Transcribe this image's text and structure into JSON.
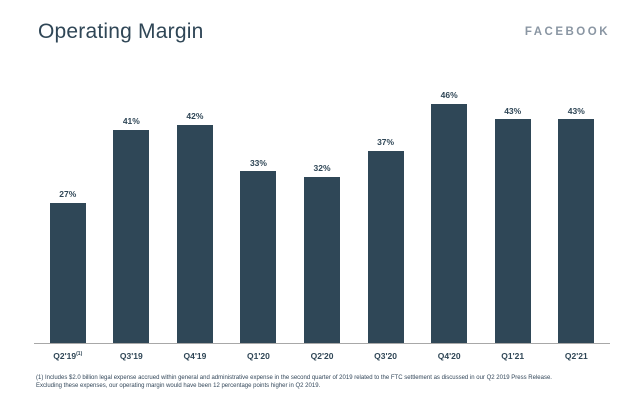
{
  "header": {
    "title": "Operating Margin",
    "brand": "FACEBOOK"
  },
  "chart_data": {
    "type": "bar",
    "title": "Operating Margin",
    "categories": [
      "Q2'19",
      "Q3'19",
      "Q4'19",
      "Q1'20",
      "Q2'20",
      "Q3'20",
      "Q4'20",
      "Q1'21",
      "Q2'21"
    ],
    "values": [
      27,
      41,
      42,
      33,
      32,
      37,
      46,
      43,
      43
    ],
    "value_labels": [
      "27%",
      "41%",
      "42%",
      "33%",
      "32%",
      "37%",
      "46%",
      "43%",
      "43%"
    ],
    "value_suffix": "%",
    "category_superscripts": {
      "0": "(1)"
    },
    "xlabel": "",
    "ylabel": "",
    "ylim": [
      0,
      50
    ],
    "grid": false,
    "legend": false,
    "bar_color": "#2f4757",
    "label_color": "#2f4656",
    "axis_line_color": "#a8a8a8"
  },
  "footnote": {
    "line1": "(1) Includes $2.0 billion legal expense accrued within general and administrative expense in the second quarter of 2019 related to the FTC settlement as discussed in our Q2 2019 Press Release.",
    "line2": "Excluding these expenses, our operating margin would have been 12 percentage points higher in Q2 2019."
  }
}
